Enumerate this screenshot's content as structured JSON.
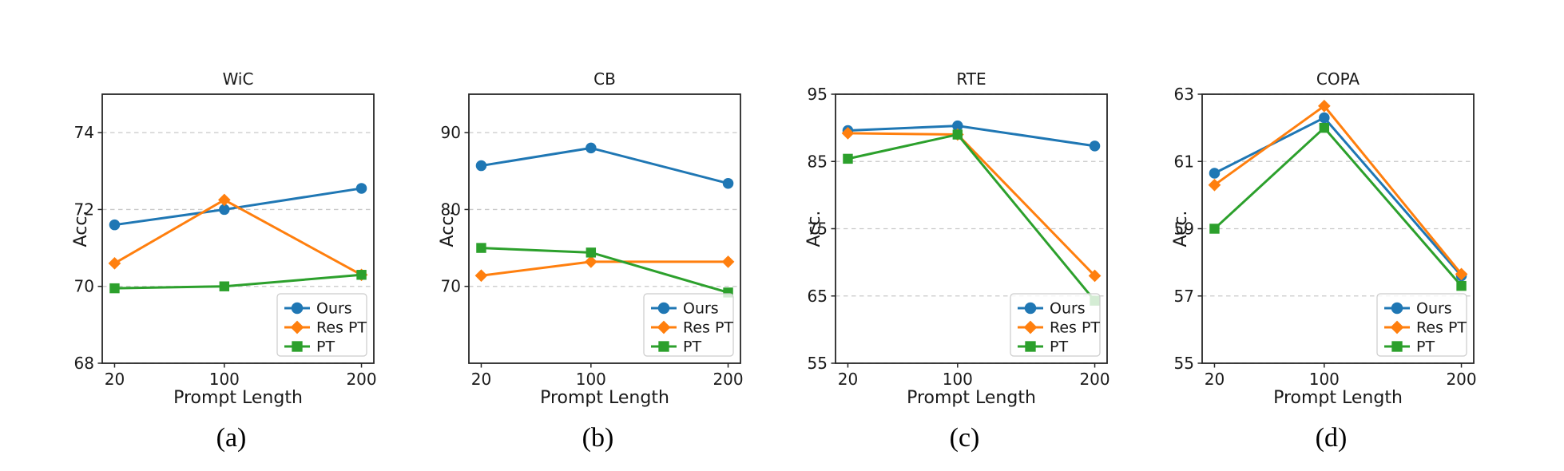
{
  "figure": {
    "xlabel": "Prompt Length",
    "ylabel": "Acc.",
    "x_categories": [
      20,
      100,
      200
    ],
    "legend": {
      "position": "lower right",
      "entries": [
        {
          "label": "Ours",
          "marker": "circle",
          "color": "#1f77b4"
        },
        {
          "label": "Res PT",
          "marker": "diamond",
          "color": "#ff7f0e"
        },
        {
          "label": "PT",
          "marker": "square",
          "color": "#2ca02c"
        }
      ]
    },
    "colors": {
      "ours": "#1f77b4",
      "res_pt": "#ff7f0e",
      "pt": "#2ca02c",
      "grid": "#c8c8c8",
      "spine": "#262626",
      "text": "#1a1a1a",
      "legend_border": "#cccccc",
      "background": "#ffffff"
    }
  },
  "chart_data": [
    {
      "type": "line",
      "title": "WiC",
      "caption": "(a)",
      "xlabel": "Prompt Length",
      "ylabel": "Acc.",
      "x": [
        20,
        100,
        200
      ],
      "xticks": [
        20,
        100,
        200
      ],
      "xlim": [
        11,
        209
      ],
      "ylim": [
        68,
        75
      ],
      "yticks": [
        68,
        70,
        72,
        74
      ],
      "grid": true,
      "legend_position": "lower right",
      "series": [
        {
          "name": "Ours",
          "marker": "circle",
          "color": "#1f77b4",
          "values": [
            71.6,
            72.0,
            72.55
          ]
        },
        {
          "name": "Res PT",
          "marker": "diamond",
          "color": "#ff7f0e",
          "values": [
            70.6,
            72.25,
            70.3
          ]
        },
        {
          "name": "PT",
          "marker": "square",
          "color": "#2ca02c",
          "values": [
            69.95,
            70.0,
            70.3
          ]
        }
      ]
    },
    {
      "type": "line",
      "title": "CB",
      "caption": "(b)",
      "xlabel": "Prompt Length",
      "ylabel": "Acc.",
      "x": [
        20,
        100,
        200
      ],
      "xticks": [
        20,
        100,
        200
      ],
      "xlim": [
        11,
        209
      ],
      "ylim": [
        60,
        95
      ],
      "yticks": [
        70,
        80,
        90
      ],
      "grid": true,
      "legend_position": "lower right",
      "series": [
        {
          "name": "Ours",
          "marker": "circle",
          "color": "#1f77b4",
          "values": [
            85.7,
            88.0,
            83.4
          ]
        },
        {
          "name": "Res PT",
          "marker": "diamond",
          "color": "#ff7f0e",
          "values": [
            71.4,
            73.2,
            73.2
          ]
        },
        {
          "name": "PT",
          "marker": "square",
          "color": "#2ca02c",
          "values": [
            75.0,
            74.4,
            69.2
          ]
        }
      ]
    },
    {
      "type": "line",
      "title": "RTE",
      "caption": "(c)",
      "xlabel": "Prompt Length",
      "ylabel": "Acc.",
      "x": [
        20,
        100,
        200
      ],
      "xticks": [
        20,
        100,
        200
      ],
      "xlim": [
        11,
        209
      ],
      "ylim": [
        55,
        95
      ],
      "yticks": [
        55,
        65,
        75,
        85,
        95
      ],
      "grid": true,
      "legend_position": "lower right",
      "series": [
        {
          "name": "Ours",
          "marker": "circle",
          "color": "#1f77b4",
          "values": [
            89.6,
            90.3,
            87.3
          ]
        },
        {
          "name": "Res PT",
          "marker": "diamond",
          "color": "#ff7f0e",
          "values": [
            89.2,
            89.0,
            68.0
          ]
        },
        {
          "name": "PT",
          "marker": "square",
          "color": "#2ca02c",
          "values": [
            85.4,
            89.0,
            64.3
          ]
        }
      ]
    },
    {
      "type": "line",
      "title": "COPA",
      "caption": "(d)",
      "xlabel": "Prompt Length",
      "ylabel": "Acc.",
      "x": [
        20,
        100,
        200
      ],
      "xticks": [
        20,
        100,
        200
      ],
      "xlim": [
        11,
        209
      ],
      "ylim": [
        55,
        63
      ],
      "yticks": [
        55,
        57,
        59,
        61,
        63
      ],
      "grid": true,
      "legend_position": "lower right",
      "series": [
        {
          "name": "Ours",
          "marker": "circle",
          "color": "#1f77b4",
          "values": [
            60.65,
            62.3,
            57.6
          ]
        },
        {
          "name": "Res PT",
          "marker": "diamond",
          "color": "#ff7f0e",
          "values": [
            60.3,
            62.65,
            57.65
          ]
        },
        {
          "name": "PT",
          "marker": "square",
          "color": "#2ca02c",
          "values": [
            59.0,
            62.0,
            57.3
          ]
        }
      ]
    }
  ]
}
